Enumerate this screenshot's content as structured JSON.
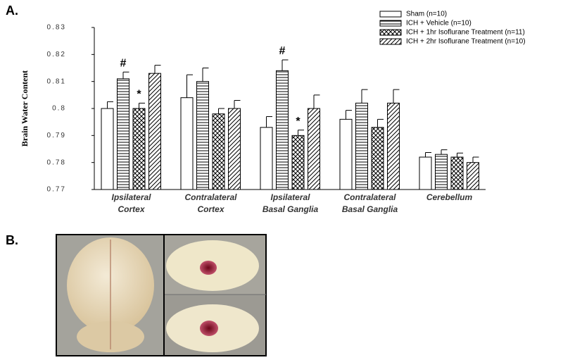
{
  "chart_data": {
    "type": "bar",
    "panel_labels": [
      "A.",
      "B."
    ],
    "ylabel": "Brain Water Content",
    "categories": [
      [
        "Ipsilateral",
        "Cortex"
      ],
      [
        "Contralateral",
        "Cortex"
      ],
      [
        "Ipsilateral",
        "Basal Ganglia"
      ],
      [
        "Contralateral",
        "Basal Ganglia"
      ],
      [
        "Cerebellum"
      ]
    ],
    "ylim": [
      0.77,
      0.83
    ],
    "yticks": [
      0.77,
      0.78,
      0.79,
      0.8,
      0.81,
      0.82,
      0.83
    ],
    "series": [
      {
        "name": "Sham (n=10)",
        "color": "#000000",
        "pattern": "none",
        "values": [
          0.8,
          0.804,
          0.793,
          0.796,
          0.782
        ],
        "errors": [
          0.0025,
          0.0085,
          0.004,
          0.0033,
          0.0017
        ],
        "markers": [
          null,
          null,
          null,
          null,
          null
        ]
      },
      {
        "name": "ICH + Vehicle (n=10)",
        "color": "#000000",
        "pattern": "horizontal",
        "values": [
          0.811,
          0.81,
          0.814,
          0.802,
          0.783
        ],
        "errors": [
          0.0025,
          0.005,
          0.004,
          0.005,
          0.0017
        ],
        "markers": [
          "#",
          null,
          "#",
          null,
          null
        ]
      },
      {
        "name": "ICH + 1hr Isoflurane Treatment (n=11)",
        "color": "#000000",
        "pattern": "crosshatch",
        "values": [
          0.8,
          0.798,
          0.79,
          0.793,
          0.782
        ],
        "errors": [
          0.002,
          0.002,
          0.002,
          0.003,
          0.0015
        ],
        "markers": [
          "*",
          null,
          "*",
          null,
          null
        ]
      },
      {
        "name": "ICH + 2hr Isoflurane Treatment (n=10)",
        "color": "#000000",
        "pattern": "diagonal",
        "values": [
          0.813,
          0.8,
          0.8,
          0.802,
          0.78
        ],
        "errors": [
          0.003,
          0.003,
          0.005,
          0.005,
          0.002
        ],
        "markers": [
          null,
          null,
          null,
          null,
          null
        ]
      }
    ]
  }
}
